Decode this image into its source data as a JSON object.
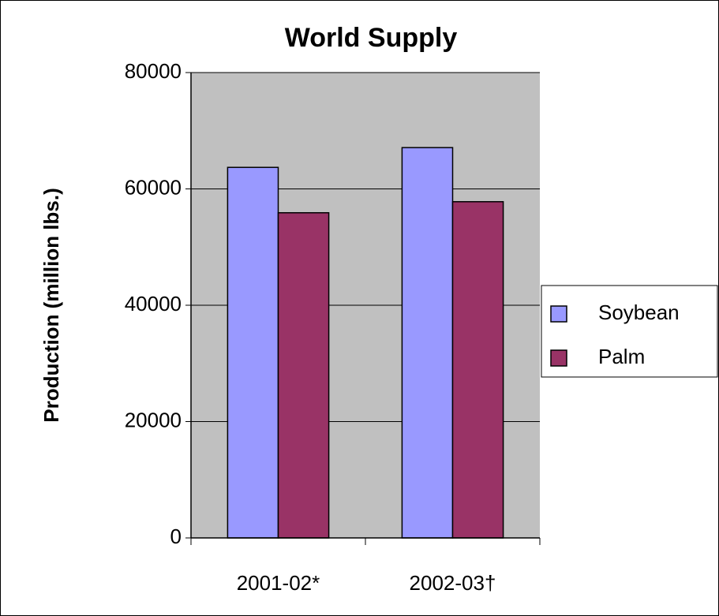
{
  "chart_data": {
    "type": "bar",
    "title": "World Supply",
    "y_label": "Production (million lbs.)",
    "categories": [
      "2001-02*",
      "2002-03†"
    ],
    "series": [
      {
        "name": "Soybean",
        "color": "#9999ff",
        "values": [
          63700,
          67100
        ]
      },
      {
        "name": "Palm",
        "color": "#993366",
        "values": [
          55900,
          57800
        ]
      }
    ],
    "ylim": [
      0,
      80000
    ],
    "yticks": [
      0,
      20000,
      40000,
      60000,
      80000
    ],
    "grid": true,
    "legend": "right",
    "plot_background": "#c0c0c0"
  }
}
